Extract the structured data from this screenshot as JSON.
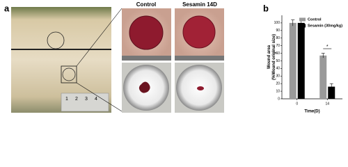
{
  "panels": {
    "a": "a",
    "b": "b"
  },
  "photo_labels": [
    "Control",
    "Sesamin 14D"
  ],
  "ruler_labels": [
    "1",
    "2",
    "3",
    "4"
  ],
  "chart_data": {
    "type": "bar",
    "ylabel": "Wound area\n(%Wound original size)",
    "xlabel": "Time(D)",
    "categories": [
      "0",
      "14"
    ],
    "series": [
      {
        "name": "Control",
        "color": "#9a9a9a",
        "values": [
          100,
          57
        ],
        "errors": [
          4,
          3
        ]
      },
      {
        "name": "Sesamin (30mg/kg)",
        "color": "#000000",
        "values": [
          100,
          16
        ],
        "errors": [
          4,
          4
        ]
      }
    ],
    "ylim": [
      0,
      110
    ],
    "yticks": [
      0,
      10,
      20,
      30,
      40,
      50,
      60,
      70,
      80,
      90,
      100
    ],
    "annotations": [
      "*"
    ],
    "legend": "upper right"
  }
}
